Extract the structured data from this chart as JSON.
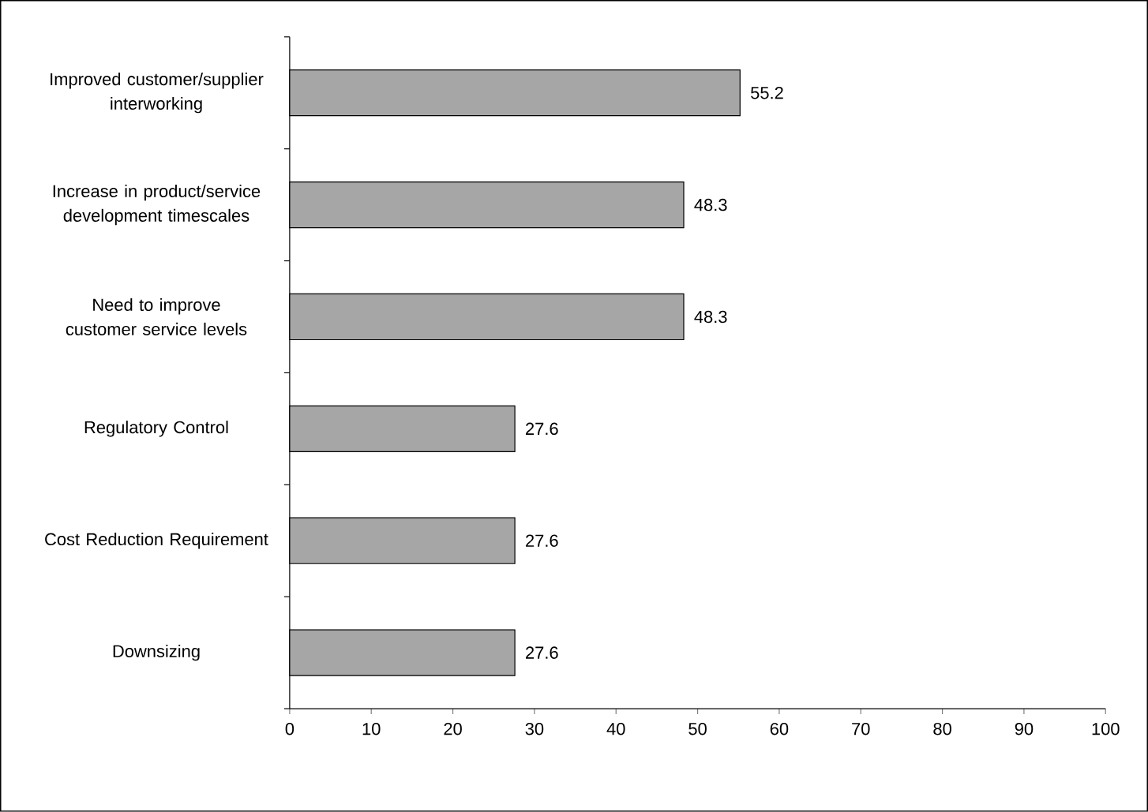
{
  "chart_data": {
    "type": "bar",
    "orientation": "horizontal",
    "categories": [
      "Improved customer/supplier interworking",
      "Increase in product/service development timescales",
      "Need to improve customer service levels",
      "Regulatory Control",
      "Cost Reduction Requirement",
      "Downsizing"
    ],
    "values": [
      55.2,
      48.3,
      48.3,
      27.6,
      27.6,
      27.6
    ],
    "color": "#a6a6a6",
    "data_labels": true,
    "xlim": [
      0,
      100
    ],
    "xticks": [
      0,
      10,
      20,
      30,
      40,
      50,
      60,
      70,
      80,
      90,
      100
    ],
    "grid": false
  }
}
